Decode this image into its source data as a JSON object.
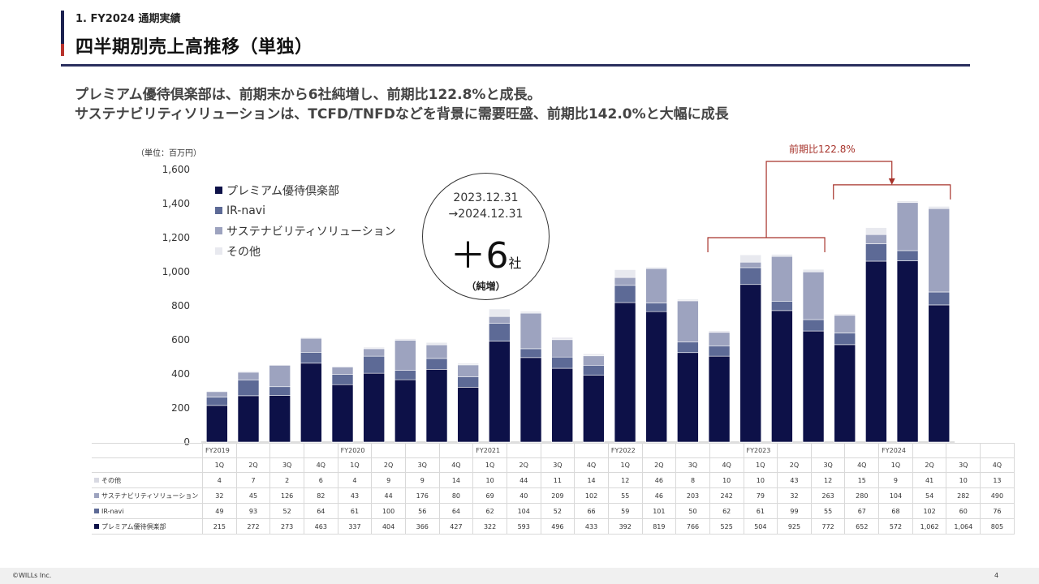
{
  "header": {
    "section": "1. FY2024 通期実績",
    "title": "四半期別売上高推移（単独）"
  },
  "headline": {
    "line1": "プレミアム優待倶楽部は、前期末から6社純増し、前期比122.8%と成長。",
    "line2": "サステナビリティソリューションは、TCFD/TNFDなどを背景に需要旺盛、前期比142.0%と大幅に成長"
  },
  "unit_label": "（単位：百万円）",
  "callout": {
    "date_from": "2023.12.31",
    "date_to": "→2024.12.31",
    "big": "＋6",
    "suffix": "社",
    "note": "（純増）"
  },
  "growth_annotation": "前期比122.8%",
  "colors": {
    "premium": "#0d1148",
    "irnavi": "#5d6a96",
    "sustain": "#9da3bf",
    "other": "#e8e9ef",
    "accent_red": "#a7332b"
  },
  "chart_data": {
    "type": "bar",
    "stacked": true,
    "ylim": [
      0,
      1600
    ],
    "yticks": [
      "0",
      "200",
      "400",
      "600",
      "800",
      "1,000",
      "1,200",
      "1,400",
      "1,600"
    ],
    "categories": [
      "1Q",
      "2Q",
      "3Q",
      "4Q",
      "1Q",
      "2Q",
      "3Q",
      "4Q",
      "1Q",
      "2Q",
      "3Q",
      "4Q",
      "1Q",
      "2Q",
      "3Q",
      "4Q",
      "1Q",
      "2Q",
      "3Q",
      "4Q",
      "1Q",
      "2Q",
      "3Q",
      "4Q"
    ],
    "fiscal_years": [
      {
        "label": "FY2019",
        "start": 0
      },
      {
        "label": "FY2020",
        "start": 4
      },
      {
        "label": "FY2021",
        "start": 8
      },
      {
        "label": "FY2022",
        "start": 12
      },
      {
        "label": "FY2023",
        "start": 16
      },
      {
        "label": "FY2024",
        "start": 20
      }
    ],
    "series": [
      {
        "name": "プレミアム優待倶楽部",
        "table_name": "プレミアム優待倶楽部",
        "color": "#0d1148",
        "values": [
          215,
          272,
          273,
          463,
          337,
          404,
          366,
          427,
          322,
          593,
          496,
          433,
          392,
          819,
          766,
          525,
          504,
          925,
          772,
          652,
          572,
          1062,
          1064,
          805
        ],
        "labels": [
          "215",
          "272",
          "273",
          "463",
          "337",
          "404",
          "366",
          "427",
          "322",
          "593",
          "496",
          "433",
          "392",
          "819",
          "766",
          "525",
          "504",
          "925",
          "772",
          "652",
          "572",
          "1,062",
          "1,064",
          "805"
        ]
      },
      {
        "name": "IR-navi",
        "table_name": "IR-navi",
        "color": "#5d6a96",
        "values": [
          49,
          93,
          52,
          64,
          61,
          100,
          56,
          64,
          62,
          104,
          52,
          66,
          59,
          101,
          50,
          62,
          61,
          99,
          55,
          67,
          68,
          102,
          60,
          76
        ],
        "labels": [
          "49",
          "93",
          "52",
          "64",
          "61",
          "100",
          "56",
          "64",
          "62",
          "104",
          "52",
          "66",
          "59",
          "101",
          "50",
          "62",
          "61",
          "99",
          "55",
          "67",
          "68",
          "102",
          "60",
          "76"
        ]
      },
      {
        "name": "サステナビリティソリューション",
        "table_name": "サステナビリティソリューション",
        "color": "#9da3bf",
        "values": [
          32,
          45,
          126,
          82,
          43,
          44,
          176,
          80,
          69,
          40,
          209,
          102,
          55,
          46,
          203,
          242,
          79,
          32,
          263,
          280,
          104,
          54,
          282,
          490
        ],
        "labels": [
          "32",
          "45",
          "126",
          "82",
          "43",
          "44",
          "176",
          "80",
          "69",
          "40",
          "209",
          "102",
          "55",
          "46",
          "203",
          "242",
          "79",
          "32",
          "263",
          "280",
          "104",
          "54",
          "282",
          "490"
        ]
      },
      {
        "name": "その他",
        "table_name": "その他",
        "color": "#e8e9ef",
        "values": [
          4,
          7,
          2,
          6,
          4,
          9,
          9,
          14,
          10,
          44,
          11,
          14,
          12,
          46,
          8,
          10,
          10,
          43,
          12,
          15,
          9,
          41,
          10,
          13
        ],
        "labels": [
          "4",
          "7",
          "2",
          "6",
          "4",
          "9",
          "9",
          "14",
          "10",
          "44",
          "11",
          "14",
          "12",
          "46",
          "8",
          "10",
          "10",
          "43",
          "12",
          "15",
          "9",
          "41",
          "10",
          "13"
        ]
      }
    ],
    "legend_placement": "top-left"
  },
  "footer": {
    "copyright": "©WILLs Inc.",
    "page": "4"
  }
}
